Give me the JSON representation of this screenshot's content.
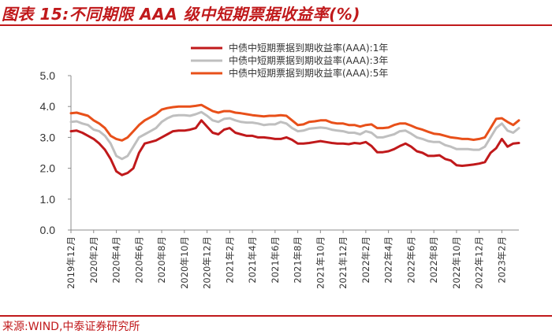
{
  "title": "图表 15:不同期限 AAA 级中短期票据收益率(%)",
  "source": "来源:WIND,中泰证券研究所",
  "colors": {
    "accent": "#c0191b",
    "series_1y": "#c0191b",
    "series_3y": "#bfbfbf",
    "series_5y": "#e8501a"
  },
  "chart_data": {
    "type": "line",
    "title": "不同期限 AAA 级中短期票据收益率(%)",
    "xlabel": "",
    "ylabel": "",
    "ylim": [
      0,
      5
    ],
    "yticks": [
      "0.0",
      "1.0",
      "2.0",
      "3.0",
      "4.0",
      "5.0"
    ],
    "x_tick_labels": [
      "2019年12月",
      "2020年2月",
      "2020年4月",
      "2020年6月",
      "2020年8月",
      "2020年10月",
      "2020年12月",
      "2021年2月",
      "2021年4月",
      "2021年6月",
      "2021年8月",
      "2021年10月",
      "2021年12月",
      "2022年2月",
      "2022年4月",
      "2022年6月",
      "2022年8月",
      "2022年10月",
      "2022年12月",
      "2023年2月"
    ],
    "legend_position": "top-right",
    "x_months": [
      0,
      0.5,
      1,
      1.5,
      2,
      2.5,
      3,
      3.5,
      4,
      4.5,
      5,
      5.5,
      6,
      6.5,
      7,
      7.5,
      8,
      8.5,
      9,
      9.5,
      10,
      10.5,
      11,
      11.5,
      12,
      12.5,
      13,
      13.5,
      14,
      14.5,
      15,
      15.5,
      16,
      16.5,
      17,
      17.5,
      18,
      18.5,
      19,
      19.5,
      20,
      20.5,
      21,
      21.5,
      22,
      22.5,
      23,
      23.5,
      24,
      24.5,
      25,
      25.5,
      26,
      26.5,
      27,
      27.5,
      28,
      28.5,
      29,
      29.5,
      30,
      30.5,
      31,
      31.5,
      32,
      32.5,
      33,
      33.5,
      34,
      34.5,
      35,
      35.5,
      36,
      36.5,
      37,
      37.5,
      38,
      38.5,
      39,
      39.5
    ],
    "series": [
      {
        "name": "中债中短期票据到期收益率(AAA):1年",
        "values": [
          3.2,
          3.22,
          3.15,
          3.05,
          2.95,
          2.8,
          2.6,
          2.3,
          1.9,
          1.78,
          1.85,
          2.0,
          2.5,
          2.8,
          2.85,
          2.9,
          3.0,
          3.1,
          3.2,
          3.22,
          3.22,
          3.25,
          3.3,
          3.55,
          3.35,
          3.15,
          3.1,
          3.25,
          3.3,
          3.15,
          3.1,
          3.05,
          3.05,
          3.0,
          3.0,
          2.98,
          2.95,
          2.95,
          3.0,
          2.92,
          2.8,
          2.8,
          2.82,
          2.85,
          2.88,
          2.85,
          2.82,
          2.8,
          2.8,
          2.78,
          2.82,
          2.8,
          2.85,
          2.72,
          2.52,
          2.52,
          2.55,
          2.62,
          2.72,
          2.8,
          2.7,
          2.55,
          2.5,
          2.4,
          2.4,
          2.42,
          2.3,
          2.25,
          2.1,
          2.08,
          2.1,
          2.12,
          2.15,
          2.2,
          2.5,
          2.65,
          2.95,
          2.7,
          2.8,
          2.82
        ]
      },
      {
        "name": "中债中短期票据到期收益率(AAA):3年",
        "values": [
          3.5,
          3.52,
          3.45,
          3.4,
          3.25,
          3.2,
          3.05,
          2.8,
          2.4,
          2.3,
          2.4,
          2.7,
          3.0,
          3.1,
          3.2,
          3.3,
          3.5,
          3.62,
          3.7,
          3.72,
          3.72,
          3.7,
          3.75,
          3.82,
          3.7,
          3.55,
          3.5,
          3.6,
          3.62,
          3.55,
          3.5,
          3.48,
          3.48,
          3.45,
          3.4,
          3.42,
          3.42,
          3.5,
          3.45,
          3.3,
          3.2,
          3.22,
          3.28,
          3.3,
          3.32,
          3.3,
          3.25,
          3.22,
          3.2,
          3.15,
          3.15,
          3.1,
          3.2,
          3.15,
          3.0,
          3.0,
          3.05,
          3.1,
          3.2,
          3.22,
          3.12,
          3.0,
          2.95,
          2.88,
          2.85,
          2.85,
          2.75,
          2.7,
          2.62,
          2.62,
          2.62,
          2.6,
          2.6,
          2.7,
          3.0,
          3.3,
          3.45,
          3.22,
          3.15,
          3.3
        ]
      },
      {
        "name": "中债中短期票据到期收益率(AAA):5年",
        "values": [
          3.78,
          3.8,
          3.75,
          3.7,
          3.55,
          3.45,
          3.3,
          3.05,
          2.95,
          2.9,
          3.0,
          3.2,
          3.4,
          3.55,
          3.65,
          3.75,
          3.9,
          3.95,
          3.98,
          4.0,
          4.0,
          4.0,
          4.02,
          4.05,
          3.95,
          3.85,
          3.8,
          3.85,
          3.85,
          3.8,
          3.78,
          3.75,
          3.72,
          3.7,
          3.68,
          3.7,
          3.7,
          3.72,
          3.7,
          3.55,
          3.4,
          3.42,
          3.5,
          3.52,
          3.55,
          3.55,
          3.48,
          3.45,
          3.45,
          3.4,
          3.4,
          3.35,
          3.4,
          3.42,
          3.3,
          3.3,
          3.32,
          3.4,
          3.45,
          3.45,
          3.38,
          3.3,
          3.25,
          3.18,
          3.12,
          3.1,
          3.05,
          3.0,
          2.98,
          2.95,
          2.95,
          2.92,
          2.95,
          3.0,
          3.3,
          3.6,
          3.62,
          3.5,
          3.4,
          3.55
        ]
      }
    ]
  }
}
